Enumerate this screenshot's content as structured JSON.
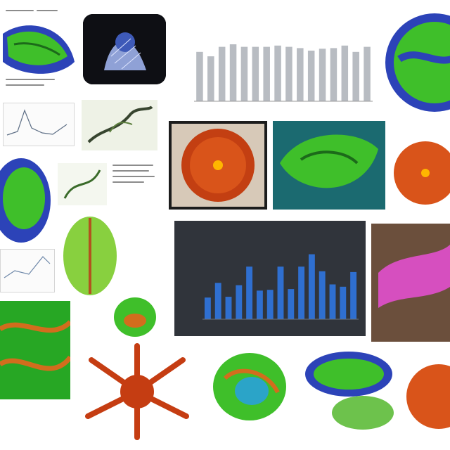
{
  "collage": {
    "colors": {
      "background": "#ffffff",
      "leaf_green": "#3fbf2a",
      "cell_blue": "#2c43b8",
      "cell_orange": "#d9541a",
      "bar_gray": "#b8bcc2",
      "bar_blue": "#2f6fd0",
      "panel_dark": "#30343b"
    },
    "gray_chart": {
      "title": "",
      "values": [
        0.78,
        0.71,
        0.86,
        0.9,
        0.86,
        0.86,
        0.86,
        0.88,
        0.86,
        0.84,
        0.8,
        0.83,
        0.84,
        0.88,
        0.78,
        0.86
      ]
    },
    "blue_chart": {
      "title": "",
      "subtitle": "",
      "xlabel": "",
      "values": [
        0.28,
        0.47,
        0.29,
        0.44,
        0.68,
        0.37,
        0.38,
        0.68,
        0.39,
        0.68,
        0.84,
        0.62,
        0.45,
        0.42,
        0.61
      ]
    },
    "icons": [
      "leaf-cell-icon",
      "organelle-icon",
      "dendrite-icon",
      "mesh-sphere-icon"
    ]
  }
}
